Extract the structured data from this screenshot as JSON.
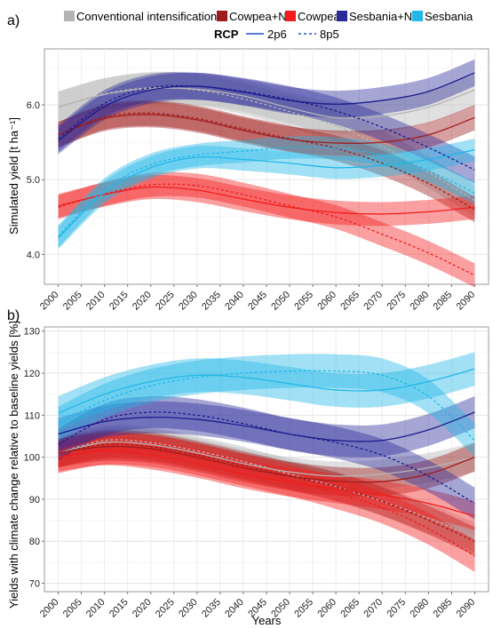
{
  "legend": {
    "scenarios": [
      {
        "name": "Conventional intensification",
        "color": "#b4b4b4"
      },
      {
        "name": "Cowpea+N",
        "color": "#a01c1c"
      },
      {
        "name": "Cowpea",
        "color": "#f21c1c"
      },
      {
        "name": "Sesbania+N",
        "color": "#2a2a9a"
      },
      {
        "name": "Sesbania",
        "color": "#21b7e8"
      }
    ],
    "rcp_title": "RCP",
    "rcp_items": [
      {
        "name": "2p6",
        "dash": "solid"
      },
      {
        "name": "8p5",
        "dash": "dashed"
      }
    ]
  },
  "chart_data": [
    {
      "type": "line",
      "panel_label": "a)",
      "ylabel": "Simulated yield [t ha⁻¹]",
      "xlabel": "",
      "x": [
        2000,
        2010,
        2020,
        2030,
        2040,
        2050,
        2060,
        2070,
        2080,
        2090
      ],
      "xlim": [
        1997,
        2093
      ],
      "ylim": [
        3.6,
        6.75
      ],
      "yticks": [
        4.0,
        5.0,
        6.0
      ],
      "ytick_labels": [
        "4.0",
        "5.0",
        "6.0"
      ],
      "xticks": [
        2000,
        2005,
        2010,
        2015,
        2020,
        2025,
        2030,
        2035,
        2040,
        2045,
        2050,
        2055,
        2060,
        2065,
        2070,
        2075,
        2080,
        2085,
        2090
      ],
      "grid": true,
      "series": [
        {
          "name": "Conventional intensification",
          "rcp": "2p6",
          "color": "#b4b4b4",
          "band_color": "#b4b4b4",
          "values": [
            5.97,
            6.14,
            6.22,
            6.21,
            6.12,
            5.96,
            5.83,
            5.85,
            5.97,
            6.2
          ],
          "halfwidth": 0.21
        },
        {
          "name": "Conventional intensification",
          "rcp": "8p5",
          "color": "#b4b4b4",
          "band_color": "#b4b4b4",
          "values": [
            5.97,
            6.15,
            6.23,
            6.2,
            6.08,
            5.91,
            5.72,
            5.45,
            5.1,
            4.72
          ],
          "halfwidth": 0.21
        },
        {
          "name": "Cowpea+N",
          "rcp": "2p6",
          "color": "#a01c1c",
          "band_color": "#a01c1c",
          "values": [
            5.6,
            5.82,
            5.87,
            5.8,
            5.66,
            5.54,
            5.49,
            5.5,
            5.6,
            5.83
          ],
          "halfwidth": 0.17
        },
        {
          "name": "Cowpea+N",
          "rcp": "8p5",
          "color": "#a01c1c",
          "band_color": "#a01c1c",
          "values": [
            5.6,
            5.84,
            5.89,
            5.82,
            5.68,
            5.55,
            5.42,
            5.22,
            4.95,
            4.6
          ],
          "halfwidth": 0.17
        },
        {
          "name": "Cowpea",
          "rcp": "2p6",
          "color": "#f21c1c",
          "band_color": "#f21c1c",
          "values": [
            4.65,
            4.8,
            4.9,
            4.86,
            4.74,
            4.63,
            4.56,
            4.54,
            4.57,
            4.63
          ],
          "halfwidth": 0.16
        },
        {
          "name": "Cowpea",
          "rcp": "8p5",
          "color": "#f21c1c",
          "band_color": "#f21c1c",
          "values": [
            4.63,
            4.81,
            4.93,
            4.92,
            4.8,
            4.65,
            4.5,
            4.27,
            4.02,
            3.72
          ],
          "halfwidth": 0.16
        },
        {
          "name": "Sesbania+N",
          "rcp": "2p6",
          "color": "#1c1c8c",
          "band_color": "#2a2a9a",
          "values": [
            5.52,
            5.98,
            6.2,
            6.25,
            6.17,
            6.06,
            6.01,
            6.06,
            6.18,
            6.43
          ],
          "halfwidth": 0.18
        },
        {
          "name": "Sesbania+N",
          "rcp": "8p5",
          "color": "#1c1c8c",
          "band_color": "#2a2a9a",
          "values": [
            5.55,
            6.02,
            6.23,
            6.25,
            6.18,
            6.07,
            5.92,
            5.7,
            5.43,
            5.13
          ],
          "halfwidth": 0.18
        },
        {
          "name": "Sesbania",
          "rcp": "2p6",
          "color": "#21b7e8",
          "band_color": "#21b7e8",
          "values": [
            4.22,
            4.83,
            5.16,
            5.3,
            5.27,
            5.22,
            5.16,
            5.19,
            5.27,
            5.4
          ],
          "halfwidth": 0.15
        },
        {
          "name": "Sesbania",
          "rcp": "8p5",
          "color": "#21b7e8",
          "band_color": "#21b7e8",
          "values": [
            4.24,
            4.87,
            5.2,
            5.33,
            5.38,
            5.43,
            5.42,
            5.33,
            5.12,
            4.82
          ],
          "halfwidth": 0.15
        }
      ]
    },
    {
      "type": "line",
      "panel_label": "b)",
      "ylabel": "Yields with climate change relative to baseline yields [%]",
      "xlabel": "Years",
      "x": [
        2000,
        2010,
        2020,
        2030,
        2040,
        2050,
        2060,
        2070,
        2080,
        2090
      ],
      "xlim": [
        1997,
        2093
      ],
      "ylim": [
        68,
        131
      ],
      "yticks": [
        70,
        80,
        90,
        100,
        110,
        120,
        130
      ],
      "ytick_labels": [
        "70",
        "80",
        "90",
        "100",
        "110",
        "120",
        "130"
      ],
      "xticks": [
        2000,
        2005,
        2010,
        2015,
        2020,
        2025,
        2030,
        2035,
        2040,
        2045,
        2050,
        2055,
        2060,
        2065,
        2070,
        2075,
        2080,
        2085,
        2090
      ],
      "xtick_labels": [
        "2000",
        "2005",
        "2010",
        "2015",
        "2020",
        "2025",
        "2030",
        "2035",
        "2040",
        "2045",
        "2050",
        "2055",
        "2060",
        "2065",
        "2070",
        "2075",
        "2080",
        "2085",
        "2090"
      ],
      "grid": true,
      "series": [
        {
          "name": "Conventional intensification",
          "rcp": "2p6",
          "color": "#b4b4b4",
          "band_color": "#b4b4b4",
          "values": [
            101,
            103.5,
            103,
            101,
            98.5,
            96.5,
            95.5,
            96,
            97.5,
            100
          ],
          "halfwidth": 3.5
        },
        {
          "name": "Conventional intensification",
          "rcp": "8p5",
          "color": "#b4b4b4",
          "band_color": "#b4b4b4",
          "values": [
            101,
            104,
            103.5,
            101.5,
            99,
            96,
            93,
            89.5,
            85.5,
            81
          ],
          "halfwidth": 3.5
        },
        {
          "name": "Cowpea+N",
          "rcp": "2p6",
          "color": "#a01c1c",
          "band_color": "#a01c1c",
          "values": [
            101,
            102.5,
            102,
            100,
            97.5,
            95.5,
            94.3,
            94.2,
            96,
            100
          ],
          "halfwidth": 3.4
        },
        {
          "name": "Cowpea+N",
          "rcp": "8p5",
          "color": "#a01c1c",
          "band_color": "#a01c1c",
          "values": [
            101,
            103,
            102.5,
            100.5,
            98,
            95.5,
            93,
            89.5,
            85,
            80
          ],
          "halfwidth": 3.4
        },
        {
          "name": "Cowpea",
          "rcp": "2p6",
          "color": "#f21c1c",
          "band_color": "#f21c1c",
          "values": [
            100,
            101.5,
            100.5,
            98.5,
            96,
            94,
            92.5,
            91,
            89,
            86
          ],
          "halfwidth": 3.4
        },
        {
          "name": "Cowpea",
          "rcp": "8p5",
          "color": "#f21c1c",
          "band_color": "#f21c1c",
          "values": [
            100,
            102,
            101.5,
            99.5,
            97,
            94.5,
            91.5,
            88,
            83,
            76.5
          ],
          "halfwidth": 3.8
        },
        {
          "name": "Sesbania+N",
          "rcp": "2p6",
          "color": "#1c1c8c",
          "band_color": "#2a2a9a",
          "values": [
            105.5,
            108.5,
            109.5,
            109,
            107.5,
            105.5,
            104,
            104,
            106.5,
            110.7
          ],
          "halfwidth": 3.8
        },
        {
          "name": "Sesbania+N",
          "rcp": "8p5",
          "color": "#1c1c8c",
          "band_color": "#2a2a9a",
          "values": [
            103,
            109,
            110.7,
            110,
            108,
            105.5,
            103.5,
            100.5,
            95.5,
            89
          ],
          "halfwidth": 3.8
        },
        {
          "name": "Sesbania",
          "rcp": "2p6",
          "color": "#21b7e8",
          "band_color": "#21b7e8",
          "values": [
            110.5,
            115,
            118,
            119.5,
            119,
            117.5,
            116,
            116,
            118,
            121
          ],
          "halfwidth": 4.0
        },
        {
          "name": "Sesbania",
          "rcp": "8p5",
          "color": "#21b7e8",
          "band_color": "#21b7e8",
          "values": [
            108,
            113.5,
            117,
            119,
            120,
            120.5,
            120.5,
            119.5,
            114.5,
            104
          ],
          "halfwidth": 4.0
        }
      ]
    }
  ]
}
